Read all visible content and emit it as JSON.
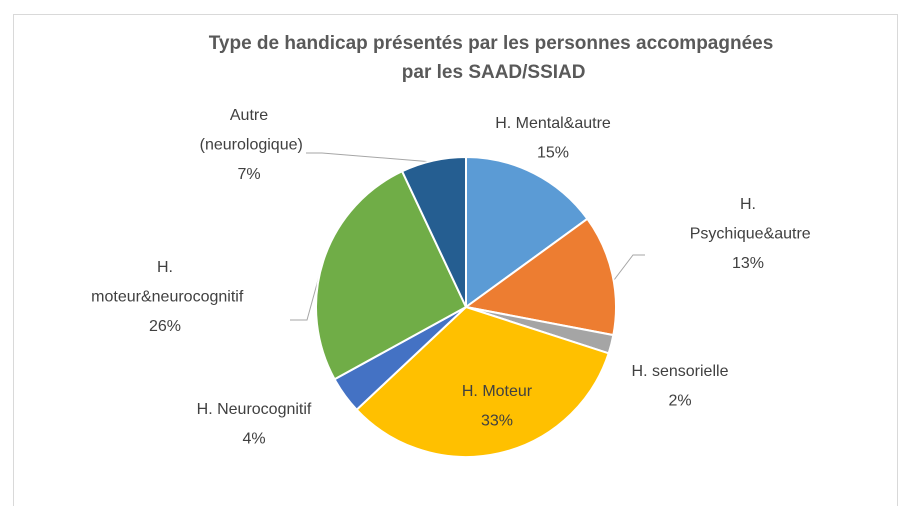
{
  "chart_data": {
    "type": "pie",
    "title": "Type de handicap présentés par les personnes accompagnées par les SAAD/SSIAD",
    "categories": [
      "H. Mental&autre",
      "H. Psychique&autre",
      "H. sensorielle",
      "H. Moteur",
      "H. Neurocognitif",
      "H. moteur&neurocognitif",
      "Autre (neurologique)"
    ],
    "values": [
      15,
      13,
      2,
      33,
      4,
      26,
      7
    ],
    "value_labels": [
      "15%",
      "13%",
      "2%",
      "33%",
      "4%",
      "26%",
      "7%"
    ],
    "colors": [
      "#5b9bd5",
      "#ed7d31",
      "#a5a5a5",
      "#ffc000",
      "#4472c4",
      "#70ad47",
      "#255e91"
    ]
  }
}
